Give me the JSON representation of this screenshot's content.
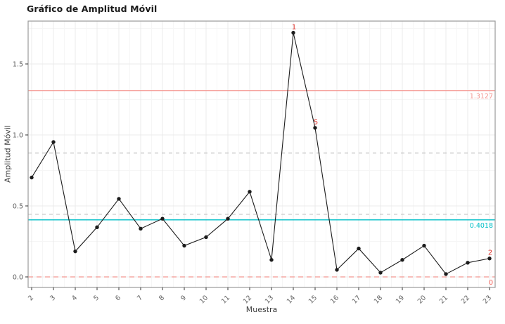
{
  "chart": {
    "title": "Gráfico de Amplitud Móvil",
    "xlabel": "Muestra",
    "ylabel": "Amplitud Móvil"
  },
  "chart_data": {
    "type": "line",
    "title": "Gráfico de Amplitud Móvil",
    "xlabel": "Muestra",
    "ylabel": "Amplitud Móvil",
    "x": [
      2,
      3,
      4,
      5,
      6,
      7,
      8,
      9,
      10,
      11,
      12,
      13,
      14,
      15,
      16,
      17,
      18,
      19,
      20,
      21,
      22,
      23
    ],
    "series": [
      {
        "name": "Amplitud Móvil",
        "values": [
          0.7,
          0.95,
          0.18,
          0.35,
          0.55,
          0.34,
          0.41,
          0.22,
          0.28,
          0.41,
          0.6,
          0.12,
          1.72,
          1.05,
          0.05,
          0.2,
          0.03,
          0.12,
          0.22,
          0.02,
          0.1,
          0.13
        ]
      }
    ],
    "xlim": [
      1.84,
      23.26
    ],
    "ylim": [
      -0.074,
      1.802
    ],
    "x_ticks": [
      2,
      3,
      4,
      5,
      6,
      7,
      8,
      9,
      10,
      11,
      12,
      13,
      14,
      15,
      16,
      17,
      18,
      19,
      20,
      21,
      22,
      23
    ],
    "y_ticks": [
      0.0,
      0.5,
      1.0,
      1.5
    ],
    "y_tick_labels": [
      "0.0",
      "0.5",
      "1.0",
      "1.5"
    ],
    "grid": true,
    "legend": "none",
    "control_lines": [
      {
        "name": "ucl",
        "value": 1.3127,
        "label": "1.3127",
        "color": "#F49691",
        "label_color": "#F49691",
        "style": "solid"
      },
      {
        "name": "center",
        "value": 0.4018,
        "label": "0.4018",
        "color": "#00BFC7",
        "label_color": "#00BFC7",
        "style": "solid"
      },
      {
        "name": "lcl",
        "value": 0.0,
        "label": "0",
        "color": "#F49691",
        "label_color": "#F25B52",
        "style": "dashed"
      }
    ],
    "zone_lines": [
      {
        "value": 0.872,
        "color": "#C2C2C2",
        "style": "dashed"
      },
      {
        "value": 0.441,
        "color": "#C2C2C2",
        "style": "dashed"
      }
    ],
    "violations": [
      {
        "x": 14,
        "label": "1"
      },
      {
        "x": 15,
        "label": "5"
      },
      {
        "x": 23,
        "label": "2"
      }
    ],
    "colors": {
      "series": "#1c1c1c",
      "violation_label": "#E0352F",
      "grid_major": "#EBEBEB",
      "grid_minor": "#F6F6F6",
      "panel_border": "#9A9A9A",
      "panel_bg": "#FFFFFF",
      "tick_mark": "#333333",
      "tick_label": "#606060",
      "axis_title": "#3C3C3C",
      "title": "#1A1A1A"
    }
  }
}
